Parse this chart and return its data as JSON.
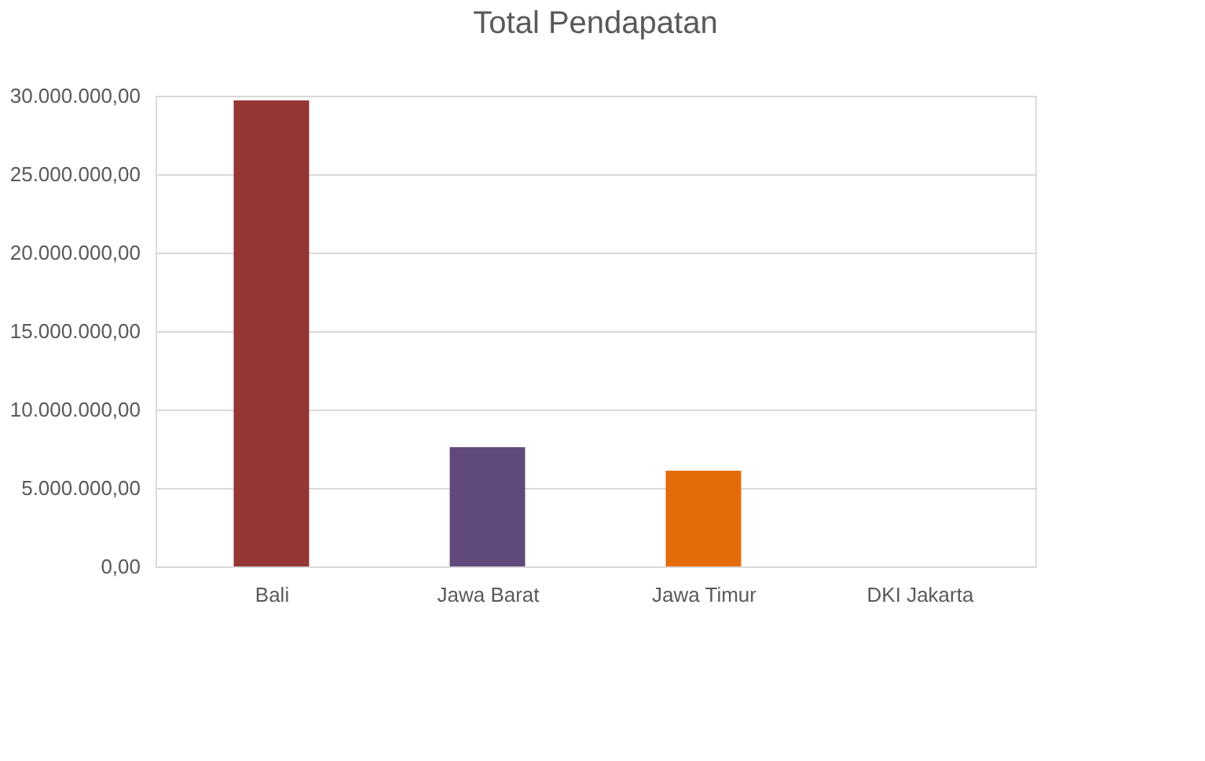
{
  "chart_data": {
    "type": "bar",
    "title": "Total Pendapatan",
    "categories": [
      "Bali",
      "Jawa Barat",
      "Jawa Timur",
      "DKI Jakarta"
    ],
    "values": [
      29700000,
      7600000,
      6100000,
      0
    ],
    "colors": [
      "#943634",
      "#604a7b",
      "#e36c09",
      "#77933c"
    ],
    "ylim": [
      0,
      30000000
    ],
    "yticks": [
      {
        "value": 0,
        "label": "0,00"
      },
      {
        "value": 5000000,
        "label": "5.000.000,00"
      },
      {
        "value": 10000000,
        "label": "10.000.000,00"
      },
      {
        "value": 15000000,
        "label": "15.000.000,00"
      },
      {
        "value": 20000000,
        "label": "20.000.000,00"
      },
      {
        "value": 25000000,
        "label": "25.000.000,00"
      },
      {
        "value": 30000000,
        "label": "30.000.000,00"
      }
    ],
    "grid": "y",
    "legend": false
  }
}
